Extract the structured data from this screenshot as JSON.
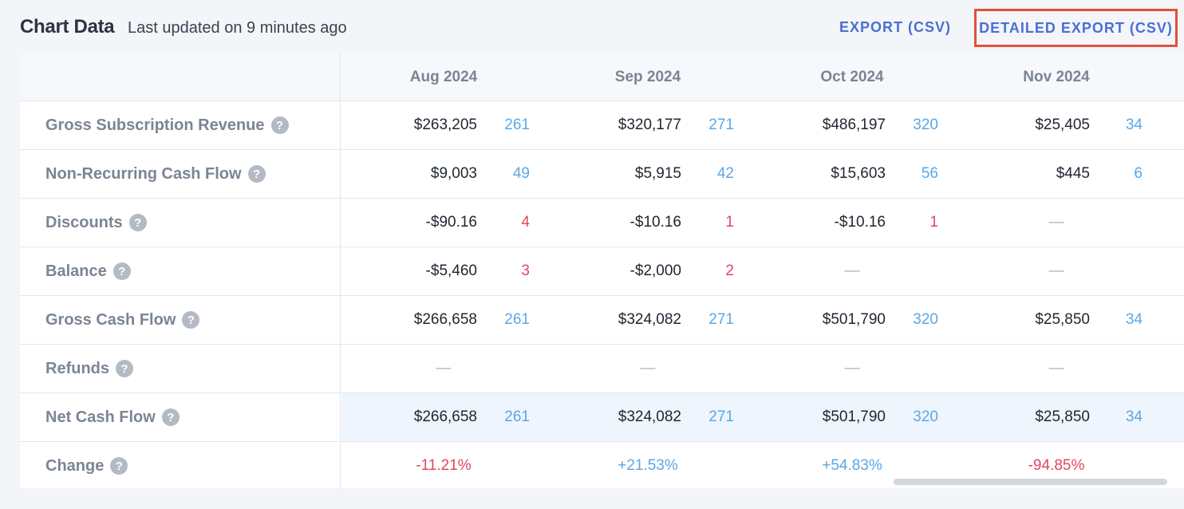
{
  "header": {
    "title": "Chart Data",
    "subtitle": "Last updated on 9 minutes ago",
    "export_csv": "EXPORT (CSV)",
    "detailed_export_csv": "DETAILED EXPORT (CSV)"
  },
  "colors": {
    "accent": "#4a6fd6",
    "highlight_border": "#e0503b",
    "count_positive": "#5aa7e6",
    "count_negative": "#e0475f",
    "row_highlight": "#eef5fc"
  },
  "help_icon": "question-circle-icon",
  "help_glyph": "?",
  "months": [
    "Aug 2024",
    "Sep 2024",
    "Oct 2024",
    "Nov 2024"
  ],
  "rows": [
    {
      "label": "Gross Subscription Revenue",
      "cells": [
        {
          "value": "$263,205",
          "count": "261",
          "tone": "blue"
        },
        {
          "value": "$320,177",
          "count": "271",
          "tone": "blue"
        },
        {
          "value": "$486,197",
          "count": "320",
          "tone": "blue"
        },
        {
          "value": "$25,405",
          "count": "34",
          "tone": "blue"
        }
      ]
    },
    {
      "label": "Non-Recurring Cash Flow",
      "cells": [
        {
          "value": "$9,003",
          "count": "49",
          "tone": "blue"
        },
        {
          "value": "$5,915",
          "count": "42",
          "tone": "blue"
        },
        {
          "value": "$15,603",
          "count": "56",
          "tone": "blue"
        },
        {
          "value": "$445",
          "count": "6",
          "tone": "blue"
        }
      ]
    },
    {
      "label": "Discounts",
      "cells": [
        {
          "value": "-$90.16",
          "count": "4",
          "tone": "red"
        },
        {
          "value": "-$10.16",
          "count": "1",
          "tone": "red"
        },
        {
          "value": "-$10.16",
          "count": "1",
          "tone": "red"
        },
        {
          "empty": "—"
        }
      ]
    },
    {
      "label": "Balance",
      "cells": [
        {
          "value": "-$5,460",
          "count": "3",
          "tone": "red"
        },
        {
          "value": "-$2,000",
          "count": "2",
          "tone": "red"
        },
        {
          "empty": "—"
        },
        {
          "empty": "—"
        }
      ]
    },
    {
      "label": "Gross Cash Flow",
      "cells": [
        {
          "value": "$266,658",
          "count": "261",
          "tone": "blue"
        },
        {
          "value": "$324,082",
          "count": "271",
          "tone": "blue"
        },
        {
          "value": "$501,790",
          "count": "320",
          "tone": "blue"
        },
        {
          "value": "$25,850",
          "count": "34",
          "tone": "blue"
        }
      ]
    },
    {
      "label": "Refunds",
      "cells": [
        {
          "empty": "—"
        },
        {
          "empty": "—"
        },
        {
          "empty": "—"
        },
        {
          "empty": "—"
        }
      ]
    },
    {
      "label": "Net Cash Flow",
      "highlight": true,
      "cells": [
        {
          "value": "$266,658",
          "count": "261",
          "tone": "blue"
        },
        {
          "value": "$324,082",
          "count": "271",
          "tone": "blue"
        },
        {
          "value": "$501,790",
          "count": "320",
          "tone": "blue"
        },
        {
          "value": "$25,850",
          "count": "34",
          "tone": "blue"
        }
      ]
    },
    {
      "label": "Change",
      "change": true,
      "cells": [
        {
          "change": "-11.21%",
          "tone": "red"
        },
        {
          "change": "+21.53%",
          "tone": "blue"
        },
        {
          "change": "+54.83%",
          "tone": "blue"
        },
        {
          "change": "-94.85%",
          "tone": "red"
        }
      ]
    }
  ]
}
